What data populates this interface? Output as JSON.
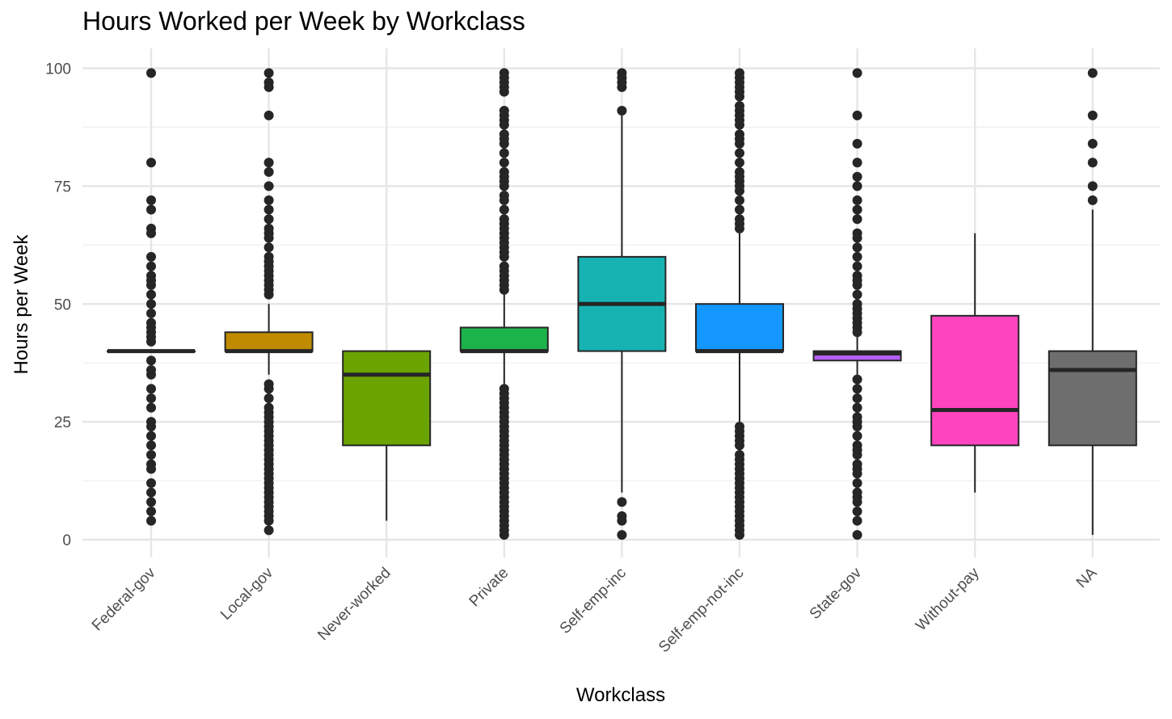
{
  "chart_data": {
    "type": "boxplot",
    "title": "Hours Worked per Week by Workclass",
    "xlabel": "Workclass",
    "ylabel": "Hours per Week",
    "ylim": [
      -5,
      104
    ],
    "yticks": [
      0,
      25,
      50,
      75,
      100
    ],
    "grid": true,
    "legend": "none",
    "categories": [
      "Federal-gov",
      "Local-gov",
      "Never-worked",
      "Private",
      "Self-emp-inc",
      "Self-emp-not-inc",
      "State-gov",
      "Without-pay",
      "NA"
    ],
    "boxes": [
      {
        "category": "Federal-gov",
        "color": "#F8766D",
        "q1": 40,
        "median": 40,
        "q3": 40,
        "whisker_low": 40,
        "whisker_high": 40,
        "outliers": [
          99,
          80,
          72,
          70,
          66,
          65,
          60,
          58,
          56,
          55,
          54,
          52,
          50,
          48,
          46,
          45,
          44,
          43,
          42,
          38,
          36,
          35,
          32,
          30,
          28,
          25,
          24,
          22,
          20,
          18,
          16,
          15,
          12,
          10,
          8,
          6,
          4
        ]
      },
      {
        "category": "Local-gov",
        "color": "#C08B00",
        "q1": 40,
        "median": 40,
        "q3": 44,
        "whisker_low": 35,
        "whisker_high": 50,
        "outliers": [
          99,
          97,
          96,
          90,
          80,
          78,
          75,
          72,
          70,
          68,
          66,
          65,
          64,
          62,
          60,
          59,
          58,
          57,
          56,
          55,
          54,
          53,
          52,
          33,
          32,
          30,
          28,
          27,
          26,
          25,
          24,
          23,
          22,
          21,
          20,
          19,
          18,
          17,
          16,
          15,
          14,
          13,
          12,
          11,
          10,
          9,
          8,
          7,
          6,
          5,
          4,
          2
        ]
      },
      {
        "category": "Never-worked",
        "color": "#6BA300",
        "q1": 20,
        "median": 35,
        "q3": 40,
        "whisker_low": 4,
        "whisker_high": 40,
        "outliers": []
      },
      {
        "category": "Private",
        "color": "#1DB34B",
        "q1": 40,
        "median": 40,
        "q3": 45,
        "whisker_low": 33,
        "whisker_high": 52,
        "outliers": [
          99,
          98,
          97,
          96,
          95,
          91,
          90,
          89,
          88,
          86,
          85,
          84,
          82,
          80,
          78,
          77,
          76,
          75,
          73,
          72,
          70,
          68,
          67,
          66,
          65,
          64,
          63,
          62,
          61,
          60,
          58,
          57,
          56,
          55,
          54,
          53,
          32,
          31,
          30,
          29,
          28,
          27,
          26,
          25,
          24,
          23,
          22,
          21,
          20,
          19,
          18,
          17,
          16,
          15,
          14,
          13,
          12,
          11,
          10,
          9,
          8,
          7,
          6,
          5,
          4,
          3,
          2,
          1
        ]
      },
      {
        "category": "Self-emp-inc",
        "color": "#17B3B3",
        "q1": 40,
        "median": 50,
        "q3": 60,
        "whisker_low": 10,
        "whisker_high": 90,
        "outliers": [
          99,
          98,
          97,
          96,
          91,
          8,
          5,
          4,
          1
        ]
      },
      {
        "category": "Self-emp-not-inc",
        "color": "#1497FF",
        "q1": 40,
        "median": 40,
        "q3": 50,
        "whisker_low": 25,
        "whisker_high": 65,
        "outliers": [
          99,
          98,
          97,
          96,
          95,
          94,
          92,
          91,
          90,
          89,
          88,
          86,
          85,
          84,
          82,
          80,
          78,
          77,
          76,
          75,
          74,
          72,
          70,
          68,
          67,
          66,
          24,
          23,
          22,
          21,
          20,
          18,
          17,
          16,
          15,
          14,
          13,
          12,
          11,
          10,
          9,
          8,
          7,
          6,
          5,
          4,
          3,
          2,
          1
        ]
      },
      {
        "category": "State-gov",
        "color": "#B55EFF",
        "q1": 38,
        "median": 39.5,
        "q3": 40,
        "whisker_low": 35,
        "whisker_high": 43,
        "outliers": [
          99,
          90,
          84,
          80,
          77,
          75,
          72,
          70,
          68,
          65,
          64,
          62,
          60,
          58,
          56,
          55,
          54,
          52,
          50,
          49,
          48,
          47,
          46,
          45,
          44,
          34,
          32,
          30,
          28,
          26,
          25,
          24,
          22,
          20,
          19,
          18,
          16,
          15,
          14,
          12,
          10,
          9,
          8,
          6,
          4,
          1
        ]
      },
      {
        "category": "Without-pay",
        "color": "#FF44C0",
        "q1": 20,
        "median": 27.5,
        "q3": 47.5,
        "whisker_low": 10,
        "whisker_high": 65,
        "outliers": []
      },
      {
        "category": "NA",
        "color": "#6E6E6E",
        "q1": 20,
        "median": 36,
        "q3": 40,
        "whisker_low": 1,
        "whisker_high": 70,
        "outliers": [
          99,
          90,
          84,
          80,
          75,
          72
        ]
      }
    ]
  }
}
